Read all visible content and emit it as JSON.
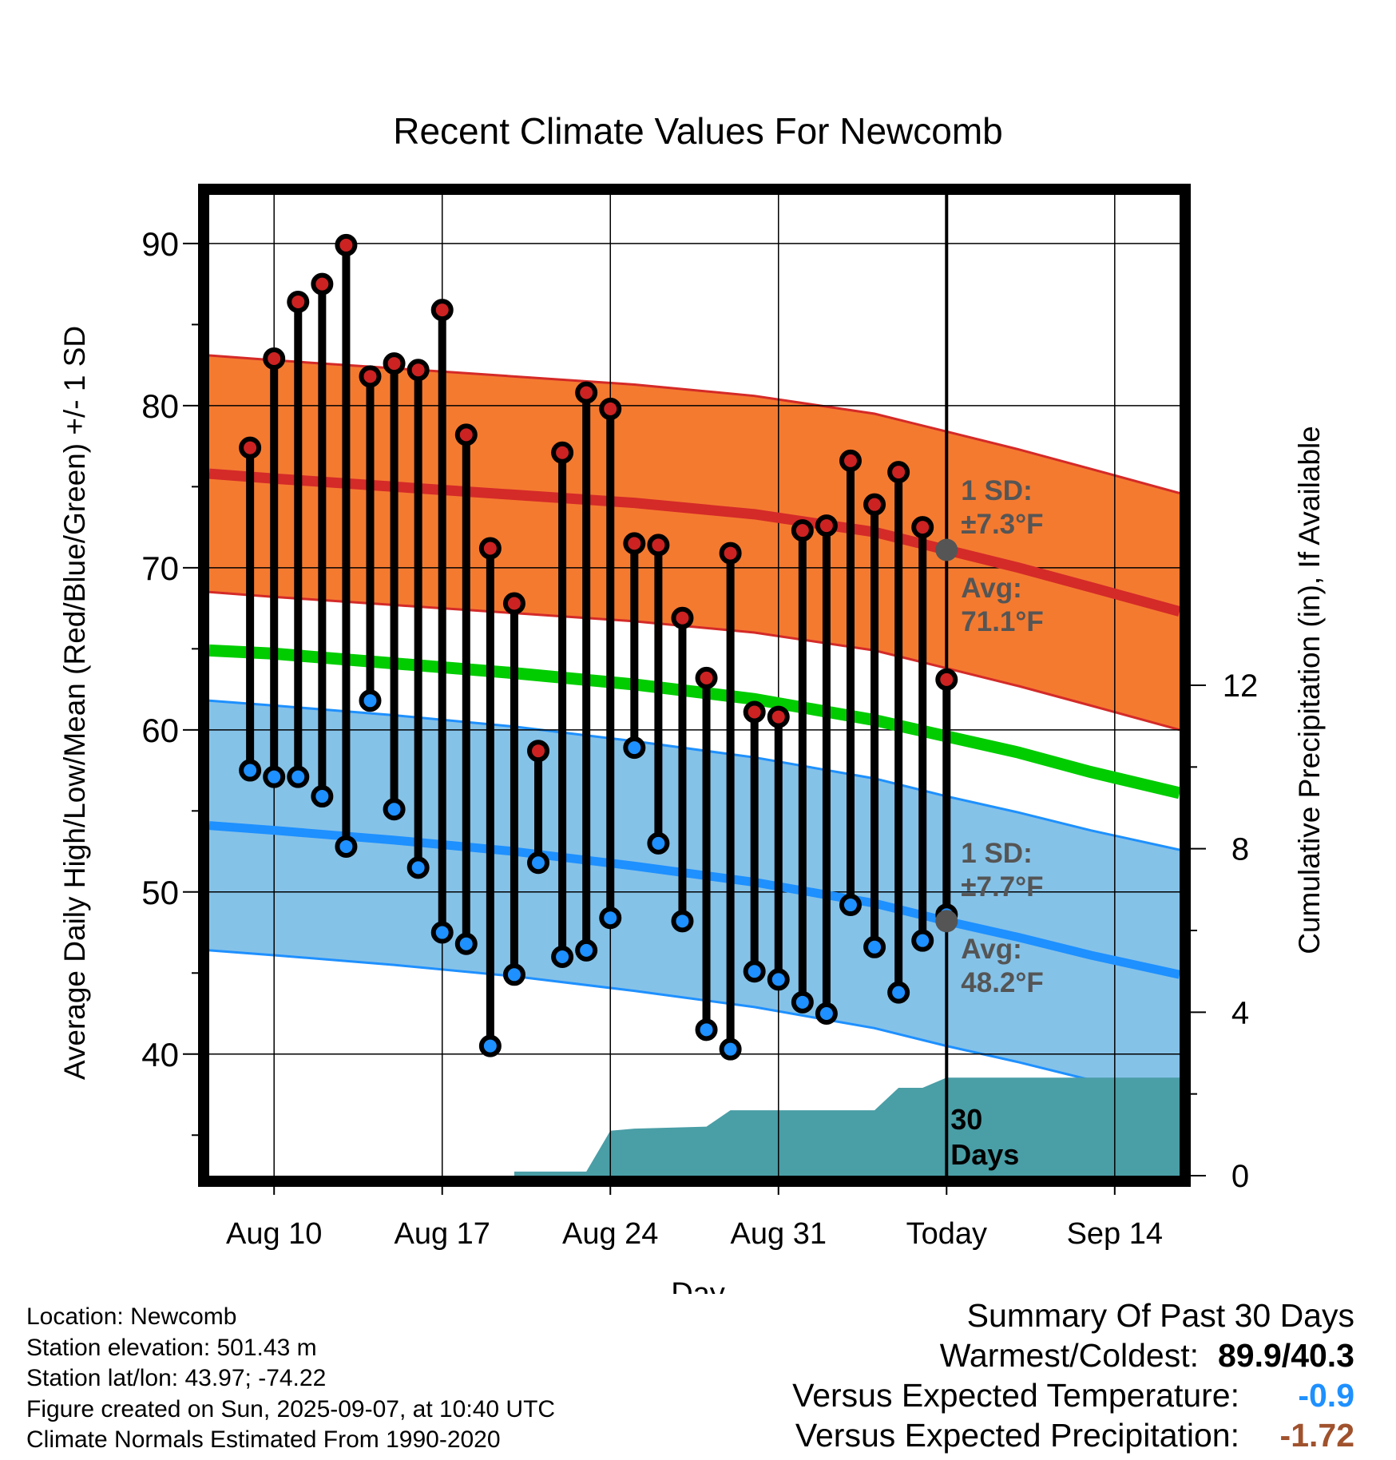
{
  "chart_data": {
    "type": "line",
    "title": "Recent Climate Values For Newcomb",
    "xlabel": "Day",
    "ylabel_left": "Average Daily High/Low/Mean (Red/Blue/Green) +/- 1 SD",
    "ylabel_right": "Cumulative Precipitation (in), If Available",
    "x_ticks": [
      {
        "day": 10,
        "label": "Aug 10"
      },
      {
        "day": 17,
        "label": "Aug 17"
      },
      {
        "day": 24,
        "label": "Aug 24"
      },
      {
        "day": 31,
        "label": "Aug 31"
      },
      {
        "day": 38,
        "label": "Today"
      },
      {
        "day": 45,
        "label": "Sep 14"
      }
    ],
    "x_range_days": [
      7.3,
      47.7
    ],
    "today_day": 38,
    "y_left_range": [
      32.5,
      93
    ],
    "y_left_ticks": [
      40,
      50,
      60,
      70,
      80,
      90
    ],
    "y_right_ticks": [
      0,
      4,
      8,
      12
    ],
    "y_right_range": [
      0,
      24
    ],
    "grid": true,
    "daily": [
      {
        "day": 9,
        "high": 77.4,
        "low": 57.5
      },
      {
        "day": 10,
        "high": 82.9,
        "low": 57.1
      },
      {
        "day": 11,
        "high": 86.4,
        "low": 57.1
      },
      {
        "day": 12,
        "high": 87.5,
        "low": 55.9
      },
      {
        "day": 13,
        "high": 89.9,
        "low": 52.8
      },
      {
        "day": 14,
        "high": 81.8,
        "low": 61.8
      },
      {
        "day": 15,
        "high": 82.6,
        "low": 55.1
      },
      {
        "day": 16,
        "high": 82.2,
        "low": 51.5
      },
      {
        "day": 17,
        "high": 85.9,
        "low": 47.5
      },
      {
        "day": 18,
        "high": 78.2,
        "low": 46.8
      },
      {
        "day": 19,
        "high": 71.2,
        "low": 40.5
      },
      {
        "day": 20,
        "high": 67.8,
        "low": 44.9
      },
      {
        "day": 21,
        "high": 58.7,
        "low": 51.8
      },
      {
        "day": 22,
        "high": 77.1,
        "low": 46.0
      },
      {
        "day": 23,
        "high": 80.8,
        "low": 46.4
      },
      {
        "day": 24,
        "high": 79.8,
        "low": 48.4
      },
      {
        "day": 25,
        "high": 71.5,
        "low": 58.9
      },
      {
        "day": 26,
        "high": 71.4,
        "low": 53.0
      },
      {
        "day": 27,
        "high": 66.9,
        "low": 48.2
      },
      {
        "day": 28,
        "high": 63.2,
        "low": 41.5
      },
      {
        "day": 29,
        "high": 70.9,
        "low": 40.3
      },
      {
        "day": 30,
        "high": 61.1,
        "low": 45.1
      },
      {
        "day": 31,
        "high": 60.8,
        "low": 44.6
      },
      {
        "day": 32,
        "high": 72.3,
        "low": 43.2
      },
      {
        "day": 33,
        "high": 72.6,
        "low": 42.5
      },
      {
        "day": 34,
        "high": 76.6,
        "low": 49.2
      },
      {
        "day": 35,
        "high": 73.9,
        "low": 46.6
      },
      {
        "day": 36,
        "high": 75.9,
        "low": 43.8
      },
      {
        "day": 37,
        "high": 72.5,
        "low": 47.0
      },
      {
        "day": 38,
        "high": 63.1,
        "low": 48.6
      }
    ],
    "normals": [
      {
        "day": 7.3,
        "high": 75.8,
        "low": 54.1,
        "mean": 64.9
      },
      {
        "day": 10,
        "high": 75.5,
        "low": 53.8,
        "mean": 64.7
      },
      {
        "day": 15,
        "high": 75.0,
        "low": 53.2,
        "mean": 64.1
      },
      {
        "day": 20,
        "high": 74.5,
        "low": 52.5,
        "mean": 63.5
      },
      {
        "day": 25,
        "high": 74.0,
        "low": 51.6,
        "mean": 62.8
      },
      {
        "day": 30,
        "high": 73.3,
        "low": 50.6,
        "mean": 61.9
      },
      {
        "day": 35,
        "high": 72.2,
        "low": 49.3,
        "mean": 60.6
      },
      {
        "day": 38,
        "high": 71.1,
        "low": 48.2,
        "mean": 59.6
      },
      {
        "day": 41,
        "high": 70.0,
        "low": 47.2,
        "mean": 58.6
      },
      {
        "day": 44,
        "high": 68.8,
        "low": 46.1,
        "mean": 57.4
      },
      {
        "day": 47.7,
        "high": 67.3,
        "low": 44.9,
        "mean": 56.1
      }
    ],
    "high_sd": 7.3,
    "low_sd": 7.7,
    "precip_cumulative": [
      {
        "day": 20,
        "value": 0.0
      },
      {
        "day": 20,
        "value": 0.1
      },
      {
        "day": 23,
        "value": 0.1
      },
      {
        "day": 24,
        "value": 1.1
      },
      {
        "day": 25,
        "value": 1.15
      },
      {
        "day": 28,
        "value": 1.2
      },
      {
        "day": 29,
        "value": 1.6
      },
      {
        "day": 35,
        "value": 1.6
      },
      {
        "day": 36,
        "value": 2.15
      },
      {
        "day": 37,
        "value": 2.15
      },
      {
        "day": 38,
        "value": 2.4
      },
      {
        "day": 47.7,
        "value": 2.4
      }
    ],
    "colors": {
      "high_band": "#f47a30",
      "high_line": "#d42a28",
      "low_band": "#85c2e8",
      "low_line": "#1e90ff",
      "mean_line": "#00cc00",
      "precip": "#4a9ea6",
      "high_marker": "#cc2222",
      "low_marker": "#1e90ff",
      "avg_marker": "#555555",
      "annotation": "#555555"
    },
    "annotations": {
      "high_sd_line1": "1 SD:",
      "high_sd_line2": "±7.3°F",
      "high_avg_line1": "Avg:",
      "high_avg_line2": "71.1°F",
      "low_sd_line1": "1 SD:",
      "low_sd_line2": "±7.7°F",
      "low_avg_line1": "Avg:",
      "low_avg_line2": "48.2°F",
      "days_line1": "30",
      "days_line2": "Days"
    }
  },
  "footer": {
    "location": "Location: Newcomb",
    "elevation": "Station elevation: 501.43 m",
    "latlon": "Station lat/lon: 43.97; -74.22",
    "created": "Figure created on Sun, 2025-09-07, at 10:40 UTC",
    "normals": "Climate Normals Estimated From 1990-2020"
  },
  "summary": {
    "title": "Summary Of Past 30 Days",
    "warm_cold_label": "Warmest/Coldest:",
    "warm_cold_value": "89.9/40.3",
    "temp_label": "Versus Expected Temperature:",
    "temp_value": "-0.9",
    "temp_color": "#1e90ff",
    "precip_label": "Versus Expected Precipitation:",
    "precip_value": "-1.72",
    "precip_color": "#a0522d"
  }
}
